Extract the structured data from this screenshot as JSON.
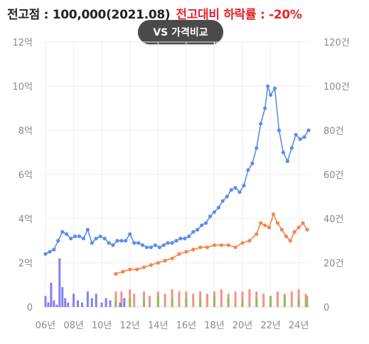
{
  "header": {
    "high_price_text": "전고점 : 100,000(2021.08)",
    "drop_text": "전고대비 하락률 : -20%"
  },
  "vs_button": {
    "label": "VS 가격비교"
  },
  "colors": {
    "price_line": "#5b8def",
    "jeonse_line": "#f58549",
    "volume_blue": "#6b6bf0",
    "volume_red": "#f47c6e",
    "volume_green": "#7cc44a",
    "grid": "#eeeeee"
  },
  "chart_data": {
    "type": "line",
    "title": "",
    "x_ticks": [
      "06년",
      "08년",
      "10년",
      "12년",
      "14년",
      "16년",
      "18년",
      "20년",
      "22년",
      "24년"
    ],
    "x_range": [
      2006,
      2024.8
    ],
    "y_left": {
      "ticks": [
        "0",
        "2억",
        "4억",
        "6억",
        "8억",
        "10억",
        "12억"
      ],
      "range": [
        0,
        12
      ]
    },
    "y_right": {
      "ticks": [
        "0",
        "20건",
        "40건",
        "60건",
        "80건",
        "100건",
        "120건"
      ],
      "range": [
        0,
        120
      ]
    },
    "grid": true,
    "series": [
      {
        "key": "price",
        "points": [
          [
            2006.0,
            2.4
          ],
          [
            2006.3,
            2.5
          ],
          [
            2006.6,
            2.6
          ],
          [
            2006.9,
            3.0
          ],
          [
            2007.2,
            3.4
          ],
          [
            2007.5,
            3.3
          ],
          [
            2007.8,
            3.1
          ],
          [
            2008.1,
            3.2
          ],
          [
            2008.4,
            3.2
          ],
          [
            2008.7,
            3.1
          ],
          [
            2009.0,
            3.5
          ],
          [
            2009.3,
            2.9
          ],
          [
            2009.6,
            3.1
          ],
          [
            2009.9,
            3.2
          ],
          [
            2010.2,
            3.1
          ],
          [
            2010.5,
            2.9
          ],
          [
            2010.8,
            2.8
          ],
          [
            2011.1,
            3.0
          ],
          [
            2011.4,
            3.0
          ],
          [
            2011.7,
            3.0
          ],
          [
            2012.0,
            3.3
          ],
          [
            2012.3,
            2.9
          ],
          [
            2012.6,
            2.9
          ],
          [
            2012.9,
            2.8
          ],
          [
            2013.2,
            2.7
          ],
          [
            2013.5,
            2.7
          ],
          [
            2013.8,
            2.8
          ],
          [
            2014.1,
            2.7
          ],
          [
            2014.4,
            2.8
          ],
          [
            2014.7,
            2.9
          ],
          [
            2015.0,
            2.9
          ],
          [
            2015.3,
            3.0
          ],
          [
            2015.6,
            3.1
          ],
          [
            2015.9,
            3.1
          ],
          [
            2016.2,
            3.2
          ],
          [
            2016.5,
            3.4
          ],
          [
            2016.8,
            3.5
          ],
          [
            2017.1,
            3.7
          ],
          [
            2017.4,
            3.8
          ],
          [
            2017.7,
            4.1
          ],
          [
            2018.0,
            4.3
          ],
          [
            2018.3,
            4.5
          ],
          [
            2018.6,
            4.8
          ],
          [
            2018.9,
            5.0
          ],
          [
            2019.2,
            5.3
          ],
          [
            2019.5,
            5.4
          ],
          [
            2019.8,
            5.2
          ],
          [
            2020.1,
            5.5
          ],
          [
            2020.4,
            6.2
          ],
          [
            2020.7,
            6.5
          ],
          [
            2021.0,
            7.2
          ],
          [
            2021.3,
            8.3
          ],
          [
            2021.6,
            9.0
          ],
          [
            2021.8,
            10.0
          ],
          [
            2022.0,
            9.6
          ],
          [
            2022.3,
            9.9
          ],
          [
            2022.6,
            8.0
          ],
          [
            2022.9,
            7.0
          ],
          [
            2023.2,
            6.6
          ],
          [
            2023.5,
            7.2
          ],
          [
            2023.8,
            7.8
          ],
          [
            2024.1,
            7.6
          ],
          [
            2024.4,
            7.7
          ],
          [
            2024.7,
            8.0
          ]
        ]
      },
      {
        "key": "jeonse",
        "points": [
          [
            2011.0,
            1.5
          ],
          [
            2011.5,
            1.6
          ],
          [
            2012.0,
            1.7
          ],
          [
            2012.5,
            1.7
          ],
          [
            2013.0,
            1.8
          ],
          [
            2013.5,
            1.9
          ],
          [
            2014.0,
            2.0
          ],
          [
            2014.5,
            2.1
          ],
          [
            2015.0,
            2.2
          ],
          [
            2015.5,
            2.4
          ],
          [
            2016.0,
            2.5
          ],
          [
            2016.5,
            2.6
          ],
          [
            2017.0,
            2.7
          ],
          [
            2017.5,
            2.7
          ],
          [
            2018.0,
            2.8
          ],
          [
            2018.5,
            2.8
          ],
          [
            2019.0,
            2.8
          ],
          [
            2019.5,
            2.7
          ],
          [
            2020.0,
            2.9
          ],
          [
            2020.5,
            3.0
          ],
          [
            2021.0,
            3.3
          ],
          [
            2021.3,
            3.8
          ],
          [
            2021.6,
            3.7
          ],
          [
            2021.9,
            3.6
          ],
          [
            2022.2,
            4.2
          ],
          [
            2022.5,
            3.8
          ],
          [
            2022.8,
            3.5
          ],
          [
            2023.1,
            3.2
          ],
          [
            2023.4,
            3.0
          ],
          [
            2023.7,
            3.4
          ],
          [
            2024.0,
            3.6
          ],
          [
            2024.3,
            3.8
          ],
          [
            2024.6,
            3.5
          ]
        ]
      }
    ],
    "volume": {
      "blue": [
        [
          2006.0,
          5
        ],
        [
          2006.2,
          2
        ],
        [
          2006.4,
          11
        ],
        [
          2006.6,
          3
        ],
        [
          2006.8,
          1
        ],
        [
          2007.0,
          22
        ],
        [
          2007.2,
          9
        ],
        [
          2007.4,
          4
        ],
        [
          2007.6,
          2
        ],
        [
          2008.0,
          6
        ],
        [
          2008.3,
          3
        ],
        [
          2008.6,
          2
        ],
        [
          2009.0,
          7
        ],
        [
          2009.3,
          4
        ],
        [
          2009.6,
          6
        ],
        [
          2010.0,
          2
        ],
        [
          2010.3,
          4
        ],
        [
          2010.6,
          3
        ],
        [
          2011.0,
          1
        ],
        [
          2011.3,
          2
        ],
        [
          2011.6,
          4
        ]
      ],
      "red": [
        [
          2011.0,
          7
        ],
        [
          2011.4,
          7
        ],
        [
          2012.0,
          8
        ],
        [
          2012.3,
          6
        ],
        [
          2013.0,
          7
        ],
        [
          2013.4,
          5
        ],
        [
          2014.0,
          7
        ],
        [
          2014.5,
          6
        ],
        [
          2015.0,
          8
        ],
        [
          2015.5,
          7
        ],
        [
          2016.0,
          7
        ],
        [
          2016.5,
          6
        ],
        [
          2017.0,
          7
        ],
        [
          2017.5,
          6
        ],
        [
          2018.0,
          7
        ],
        [
          2018.5,
          8
        ],
        [
          2019.0,
          6
        ],
        [
          2019.5,
          7
        ],
        [
          2020.0,
          7
        ],
        [
          2020.5,
          8
        ],
        [
          2021.0,
          7
        ],
        [
          2021.5,
          6
        ],
        [
          2022.0,
          5
        ],
        [
          2022.5,
          7
        ],
        [
          2023.0,
          6
        ],
        [
          2023.5,
          7
        ],
        [
          2024.0,
          8
        ],
        [
          2024.5,
          6
        ]
      ],
      "green": [
        [
          2011.0,
          3
        ],
        [
          2012.0,
          4
        ],
        [
          2013.0,
          3
        ],
        [
          2014.0,
          5
        ],
        [
          2015.0,
          4
        ],
        [
          2016.0,
          4
        ],
        [
          2017.0,
          3
        ],
        [
          2018.0,
          5
        ],
        [
          2019.0,
          4
        ],
        [
          2020.0,
          3
        ],
        [
          2021.0,
          4
        ],
        [
          2022.0,
          5
        ],
        [
          2023.0,
          5
        ],
        [
          2024.0,
          4
        ],
        [
          2024.6,
          5
        ]
      ]
    }
  }
}
